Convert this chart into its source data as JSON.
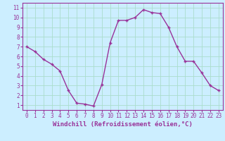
{
  "x": [
    0,
    1,
    2,
    3,
    4,
    5,
    6,
    7,
    8,
    9,
    10,
    11,
    12,
    13,
    14,
    15,
    16,
    17,
    18,
    19,
    20,
    21,
    22,
    23
  ],
  "y": [
    7.0,
    6.5,
    5.7,
    5.2,
    4.5,
    2.5,
    1.2,
    1.1,
    0.9,
    3.1,
    7.4,
    9.7,
    9.7,
    10.0,
    10.8,
    10.5,
    10.4,
    9.0,
    7.0,
    5.5,
    5.5,
    4.3,
    3.0,
    2.5
  ],
  "line_color": "#993399",
  "marker": "+",
  "marker_size": 3,
  "xlabel": "Windchill (Refroidissement éolien,°C)",
  "xlabel_color": "#993399",
  "xlabel_fontsize": 6.5,
  "xtick_labels": [
    "0",
    "1",
    "2",
    "3",
    "4",
    "5",
    "6",
    "7",
    "8",
    "9",
    "10",
    "11",
    "12",
    "13",
    "14",
    "15",
    "16",
    "17",
    "18",
    "19",
    "20",
    "21",
    "22",
    "23"
  ],
  "ytick_labels": [
    "1",
    "2",
    "3",
    "4",
    "5",
    "6",
    "7",
    "8",
    "9",
    "10",
    "11"
  ],
  "ylim": [
    0.5,
    11.5
  ],
  "xlim": [
    -0.5,
    23.5
  ],
  "background_color": "#cceeff",
  "grid_color": "#aaddcc",
  "tick_color": "#993399",
  "tick_fontsize": 5.5,
  "line_width": 1.0
}
